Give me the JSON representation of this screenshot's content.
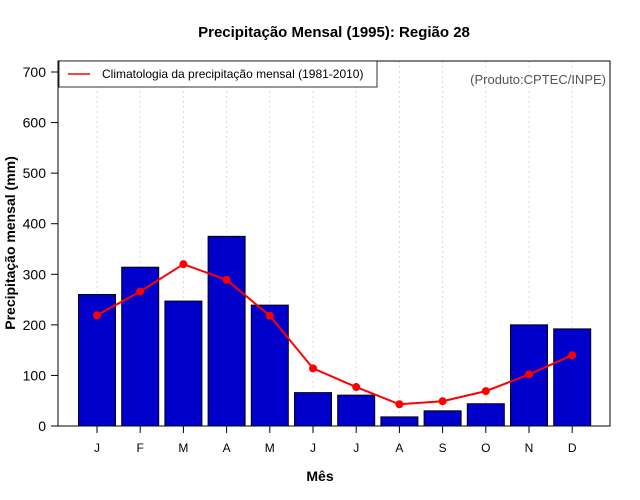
{
  "chart_data": {
    "type": "bar",
    "title": "Precipitação Mensal (1995): Região 28",
    "xlabel": "Mês",
    "ylabel": "Precipitação mensal (mm)",
    "ylim": [
      0,
      700
    ],
    "yticks": [
      0,
      100,
      200,
      300,
      400,
      500,
      600,
      700
    ],
    "categories": [
      "J",
      "F",
      "M",
      "A",
      "M",
      "J",
      "J",
      "A",
      "S",
      "O",
      "N",
      "D"
    ],
    "grid": "vertical dotted",
    "series": [
      {
        "name": "Precipitação mensal (1995)",
        "type": "bar",
        "color": "#0000cd",
        "values": [
          260,
          314,
          247,
          375,
          239,
          66,
          61,
          18,
          30,
          44,
          200,
          192
        ]
      },
      {
        "name": "Climatologia da precipitação mensal (1981-2010)",
        "type": "line",
        "color": "#ff0000",
        "values": [
          219,
          266,
          320,
          289,
          218,
          114,
          77,
          43,
          49,
          69,
          102,
          140
        ]
      }
    ],
    "legend": {
      "position": "top-left",
      "entries": [
        "Climatologia da precipitação mensal (1981-2010)"
      ]
    },
    "annotation": "(Produto:CPTEC/INPE)"
  }
}
